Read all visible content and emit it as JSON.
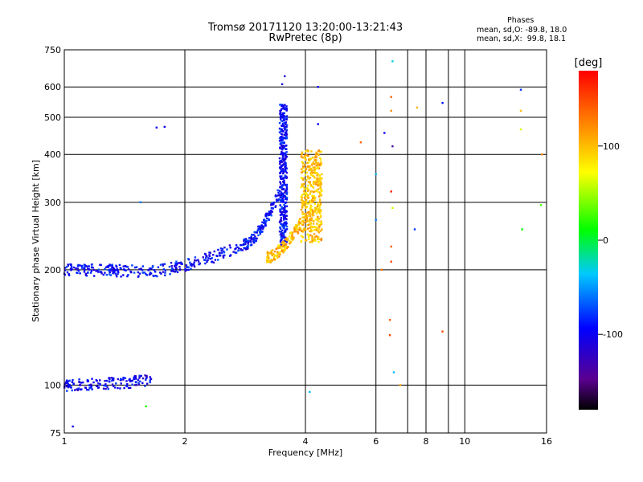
{
  "chart_data": {
    "type": "scatter",
    "title": "Tromsø 20171120 13:20:00-13:21:43",
    "subtitle": "RwPretec (8p)",
    "xlabel": "Frequency [MHz]",
    "ylabel": "Stationary phase Virtual Height [km]",
    "x_scale": "log",
    "y_scale": "log",
    "xlim": [
      1,
      16
    ],
    "ylim": [
      75,
      750
    ],
    "x_ticks": [
      1,
      2,
      4,
      6,
      8,
      10,
      16
    ],
    "x_tick_labels": [
      "1",
      "2",
      "4",
      "6",
      "8",
      "10",
      "16"
    ],
    "x_grid_lines": [
      2,
      4,
      6,
      7.2,
      8,
      9.1,
      10
    ],
    "y_ticks": [
      75,
      100,
      200,
      300,
      400,
      500,
      600,
      750
    ],
    "y_tick_labels": [
      "75",
      "100",
      "200",
      "300",
      "400",
      "500",
      "600",
      "750"
    ],
    "y_grid_lines": [
      100,
      200,
      300,
      400,
      500,
      600
    ],
    "stats": {
      "heading": "Phases",
      "line_o": "mean, sd,O: -89.8, 18.0",
      "line_x": "mean, sd,X:  99.8, 18.1"
    },
    "colorbar": {
      "label": "[deg]",
      "range": [
        -180,
        180
      ],
      "ticks": [
        100,
        0,
        -100
      ],
      "tick_labels": [
        "100",
        "0",
        "-100"
      ]
    },
    "series": [
      {
        "name": "O-mode echoes (F-layer trace)",
        "phase_deg": -95,
        "segments": [
          {
            "from_mhz": 1.0,
            "to_mhz": 1.6,
            "height_start_km": 200,
            "height_end_km": 198
          },
          {
            "from_mhz": 1.6,
            "to_mhz": 2.8,
            "height_start_km": 198,
            "height_end_km": 232
          },
          {
            "from_mhz": 2.8,
            "to_mhz": 3.45,
            "height_start_km": 232,
            "height_end_km": 320
          },
          {
            "from_mhz": 3.45,
            "to_mhz": 3.6,
            "height_start_km": 230,
            "height_end_km": 540
          }
        ]
      },
      {
        "name": "X-mode echoes (F-layer trace)",
        "phase_deg": 100,
        "segments": [
          {
            "from_mhz": 3.2,
            "to_mhz": 3.9,
            "height_start_km": 215,
            "height_end_km": 265
          },
          {
            "from_mhz": 3.9,
            "to_mhz": 4.4,
            "height_start_km": 235,
            "height_end_km": 410
          }
        ]
      },
      {
        "name": "Lower-height echoes",
        "phase_deg": -100,
        "segments": [
          {
            "from_mhz": 1.0,
            "to_mhz": 1.65,
            "height_start_km": 100,
            "height_end_km": 103
          }
        ]
      },
      {
        "name": "Scattered echoes",
        "points": [
          {
            "freq": 1.05,
            "height": 78,
            "phase": -100
          },
          {
            "freq": 1.6,
            "height": 88,
            "phase": 20
          },
          {
            "freq": 1.55,
            "height": 300,
            "phase": -60
          },
          {
            "freq": 1.7,
            "height": 470,
            "phase": -100
          },
          {
            "freq": 1.78,
            "height": 472,
            "phase": -100
          },
          {
            "freq": 3.5,
            "height": 610,
            "phase": -110
          },
          {
            "freq": 3.55,
            "height": 640,
            "phase": -110
          },
          {
            "freq": 4.3,
            "height": 600,
            "phase": -100
          },
          {
            "freq": 4.1,
            "height": 96,
            "phase": -40
          },
          {
            "freq": 4.3,
            "height": 480,
            "phase": -95
          },
          {
            "freq": 5.5,
            "height": 430,
            "phase": 140
          },
          {
            "freq": 6.3,
            "height": 455,
            "phase": -95
          },
          {
            "freq": 6.55,
            "height": 520,
            "phase": 120
          },
          {
            "freq": 6.55,
            "height": 565,
            "phase": 140
          },
          {
            "freq": 6.6,
            "height": 700,
            "phase": -30
          },
          {
            "freq": 6.6,
            "height": 420,
            "phase": -140
          },
          {
            "freq": 6.55,
            "height": 320,
            "phase": 170
          },
          {
            "freq": 6.6,
            "height": 290,
            "phase": 60
          },
          {
            "freq": 6.55,
            "height": 230,
            "phase": 140
          },
          {
            "freq": 6.55,
            "height": 210,
            "phase": 150
          },
          {
            "freq": 6.5,
            "height": 148,
            "phase": 140
          },
          {
            "freq": 6.5,
            "height": 135,
            "phase": 150
          },
          {
            "freq": 6.65,
            "height": 108,
            "phase": -40
          },
          {
            "freq": 6.9,
            "height": 100,
            "phase": 110
          },
          {
            "freq": 6.2,
            "height": 200,
            "phase": 130
          },
          {
            "freq": 7.6,
            "height": 530,
            "phase": 105
          },
          {
            "freq": 7.5,
            "height": 255,
            "phase": -80
          },
          {
            "freq": 8.8,
            "height": 545,
            "phase": -90
          },
          {
            "freq": 8.8,
            "height": 138,
            "phase": 150
          },
          {
            "freq": 13.8,
            "height": 590,
            "phase": -80
          },
          {
            "freq": 13.8,
            "height": 520,
            "phase": 100
          },
          {
            "freq": 13.8,
            "height": 465,
            "phase": 60
          },
          {
            "freq": 13.9,
            "height": 255,
            "phase": 10
          },
          {
            "freq": 15.5,
            "height": 295,
            "phase": 30
          },
          {
            "freq": 15.6,
            "height": 400,
            "phase": 120
          },
          {
            "freq": 6.0,
            "height": 355,
            "phase": -40
          },
          {
            "freq": 6.0,
            "height": 270,
            "phase": -60
          }
        ]
      }
    ]
  }
}
